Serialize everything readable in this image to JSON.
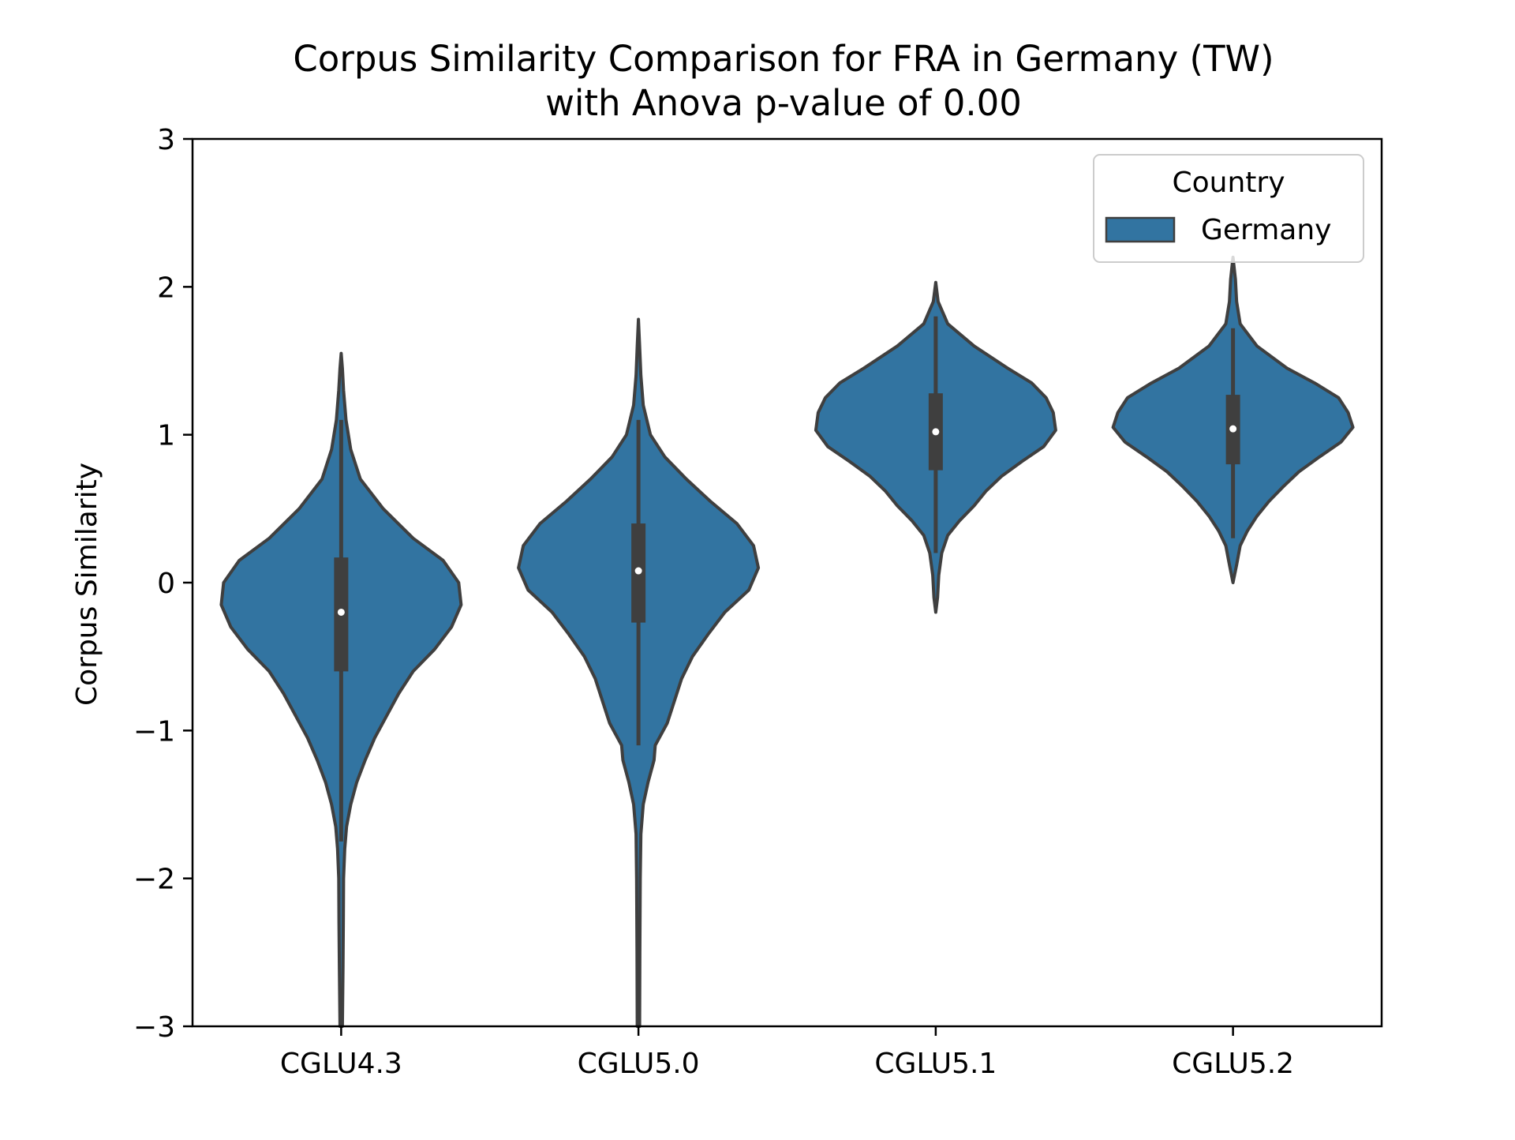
{
  "chart_data": {
    "type": "violin",
    "title_line1": "Corpus Similarity Comparison for FRA in Germany (TW)",
    "title_line2": "with Anova p-value of 0.00",
    "xlabel": "",
    "ylabel": "Corpus Similarity",
    "ylim": [
      -3,
      3
    ],
    "yticks": [
      -3,
      -2,
      -1,
      0,
      1,
      2,
      3
    ],
    "ytick_labels": [
      "−3",
      "−2",
      "−1",
      "0",
      "1",
      "2",
      "3"
    ],
    "categories": [
      "CGLU4.3",
      "CGLU5.0",
      "CGLU5.1",
      "CGLU5.2"
    ],
    "legend": {
      "title": "Country",
      "entries": [
        "Germany"
      ],
      "placement": "top-right"
    },
    "colors": {
      "violin_fill": "#3274a1",
      "violin_edge": "#3f3f3f",
      "median_dot": "#ffffff"
    },
    "grid": false,
    "series": [
      {
        "name": "Germany",
        "violins": [
          {
            "category": "CGLU4.3",
            "median": -0.2,
            "q1": -0.6,
            "q3": 0.17,
            "whisker_low": -1.75,
            "whisker_high": 1.1,
            "density": [
              [
                1.55,
                0.0
              ],
              [
                1.45,
                0.01
              ],
              [
                1.3,
                0.02
              ],
              [
                1.1,
                0.04
              ],
              [
                0.9,
                0.08
              ],
              [
                0.7,
                0.16
              ],
              [
                0.5,
                0.35
              ],
              [
                0.3,
                0.6
              ],
              [
                0.15,
                0.85
              ],
              [
                0.0,
                0.98
              ],
              [
                -0.15,
                1.0
              ],
              [
                -0.3,
                0.92
              ],
              [
                -0.45,
                0.78
              ],
              [
                -0.6,
                0.6
              ],
              [
                -0.75,
                0.48
              ],
              [
                -0.9,
                0.38
              ],
              [
                -1.05,
                0.28
              ],
              [
                -1.2,
                0.2
              ],
              [
                -1.35,
                0.13
              ],
              [
                -1.5,
                0.08
              ],
              [
                -1.65,
                0.045
              ],
              [
                -1.8,
                0.03
              ],
              [
                -2.0,
                0.02
              ],
              [
                -2.3,
                0.018
              ],
              [
                -2.6,
                0.015
              ],
              [
                -3.0,
                0.01
              ]
            ]
          },
          {
            "category": "CGLU5.0",
            "median": 0.08,
            "q1": -0.27,
            "q3": 0.4,
            "whisker_low": -1.1,
            "whisker_high": 1.1,
            "density": [
              [
                1.78,
                0.0
              ],
              [
                1.6,
                0.01
              ],
              [
                1.4,
                0.02
              ],
              [
                1.2,
                0.04
              ],
              [
                1.0,
                0.1
              ],
              [
                0.85,
                0.22
              ],
              [
                0.7,
                0.4
              ],
              [
                0.55,
                0.6
              ],
              [
                0.4,
                0.82
              ],
              [
                0.25,
                0.96
              ],
              [
                0.1,
                1.0
              ],
              [
                -0.05,
                0.92
              ],
              [
                -0.2,
                0.72
              ],
              [
                -0.35,
                0.58
              ],
              [
                -0.5,
                0.45
              ],
              [
                -0.65,
                0.36
              ],
              [
                -0.8,
                0.3
              ],
              [
                -0.95,
                0.24
              ],
              [
                -1.1,
                0.14
              ],
              [
                -1.2,
                0.13
              ],
              [
                -1.35,
                0.08
              ],
              [
                -1.5,
                0.04
              ],
              [
                -1.7,
                0.02
              ],
              [
                -2.0,
                0.015
              ],
              [
                -2.5,
                0.012
              ],
              [
                -3.0,
                0.01
              ]
            ]
          },
          {
            "category": "CGLU5.1",
            "median": 1.02,
            "q1": 0.76,
            "q3": 1.28,
            "whisker_low": 0.2,
            "whisker_high": 1.8,
            "density": [
              [
                2.03,
                0.0
              ],
              [
                1.9,
                0.02
              ],
              [
                1.75,
                0.1
              ],
              [
                1.6,
                0.32
              ],
              [
                1.45,
                0.6
              ],
              [
                1.35,
                0.8
              ],
              [
                1.25,
                0.92
              ],
              [
                1.15,
                0.98
              ],
              [
                1.03,
                1.0
              ],
              [
                0.92,
                0.9
              ],
              [
                0.82,
                0.72
              ],
              [
                0.72,
                0.55
              ],
              [
                0.62,
                0.42
              ],
              [
                0.52,
                0.32
              ],
              [
                0.42,
                0.2
              ],
              [
                0.32,
                0.1
              ],
              [
                0.2,
                0.05
              ],
              [
                0.05,
                0.025
              ],
              [
                -0.1,
                0.015
              ],
              [
                -0.2,
                0.0
              ]
            ]
          },
          {
            "category": "CGLU5.2",
            "median": 1.04,
            "q1": 0.8,
            "q3": 1.27,
            "whisker_low": 0.3,
            "whisker_high": 1.72,
            "density": [
              [
                2.2,
                0.0
              ],
              [
                2.05,
                0.02
              ],
              [
                1.9,
                0.03
              ],
              [
                1.75,
                0.06
              ],
              [
                1.6,
                0.2
              ],
              [
                1.45,
                0.45
              ],
              [
                1.35,
                0.68
              ],
              [
                1.25,
                0.88
              ],
              [
                1.15,
                0.96
              ],
              [
                1.05,
                1.0
              ],
              [
                0.95,
                0.9
              ],
              [
                0.85,
                0.72
              ],
              [
                0.75,
                0.55
              ],
              [
                0.65,
                0.42
              ],
              [
                0.55,
                0.3
              ],
              [
                0.45,
                0.2
              ],
              [
                0.35,
                0.12
              ],
              [
                0.25,
                0.06
              ],
              [
                0.12,
                0.03
              ],
              [
                0.0,
                0.0
              ]
            ]
          }
        ]
      }
    ]
  }
}
